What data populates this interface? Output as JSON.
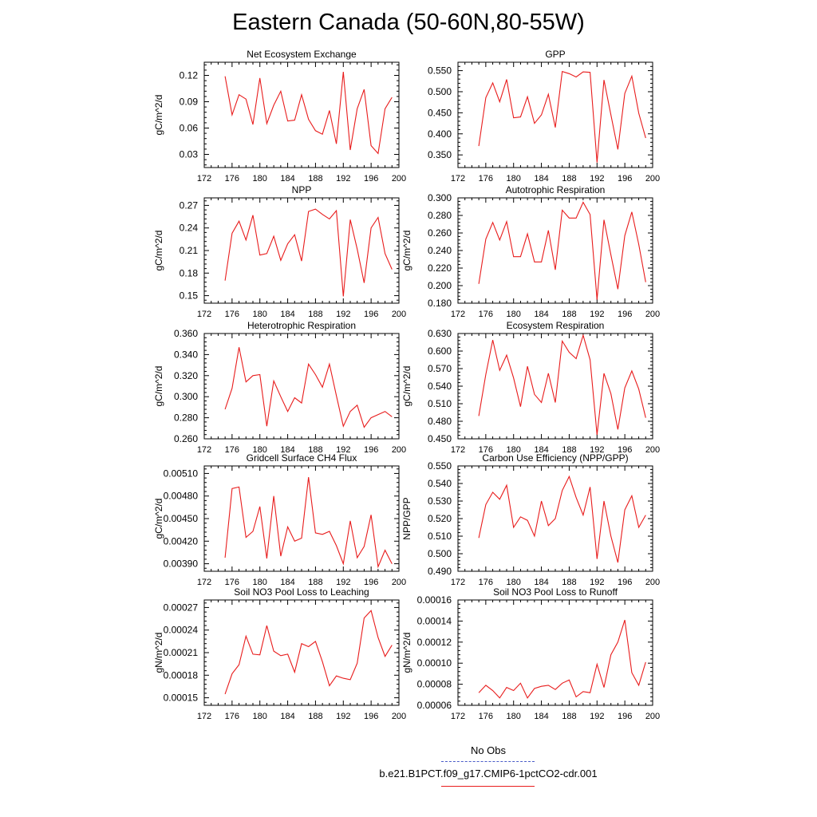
{
  "title": "Eastern Canada (50-60N,80-55W)",
  "legend": {
    "obs_label": "No Obs",
    "case_label": "b.e21.B1PCT.f09_g17.CMIP6-1pctCO2-cdr.001",
    "obs_color": "#4a5cc8",
    "case_color": "#e81c1c"
  },
  "chart_data": [
    {
      "type": "line",
      "title": "Net Ecosystem Exchange",
      "ylabel": "gC/m^2/d",
      "xlim": [
        172,
        200
      ],
      "xticks": [
        172,
        176,
        180,
        184,
        188,
        192,
        196,
        200
      ],
      "xticklabels": [
        "172",
        "176",
        "180",
        "184",
        "188",
        "192",
        "196",
        "200"
      ],
      "ylim": [
        0.015,
        0.135
      ],
      "yticks": [
        0.03,
        0.06,
        0.09,
        0.12
      ],
      "yticklabels": [
        "0.03",
        "0.06",
        "0.09",
        "0.12"
      ],
      "x": [
        175,
        176,
        177,
        178,
        179,
        180,
        181,
        182,
        183,
        184,
        185,
        186,
        187,
        188,
        189,
        190,
        191,
        192,
        193,
        194,
        195,
        196,
        197,
        198,
        199
      ],
      "series": [
        {
          "color": "#e81c1c",
          "values": [
            0.119,
            0.075,
            0.098,
            0.093,
            0.064,
            0.117,
            0.065,
            0.086,
            0.102,
            0.068,
            0.069,
            0.098,
            0.07,
            0.057,
            0.053,
            0.08,
            0.042,
            0.124,
            0.035,
            0.082,
            0.104,
            0.04,
            0.031,
            0.082,
            0.095
          ]
        }
      ]
    },
    {
      "type": "line",
      "title": "GPP",
      "ylabel": "",
      "xlim": [
        172,
        200
      ],
      "xticks": [
        172,
        176,
        180,
        184,
        188,
        192,
        196,
        200
      ],
      "xticklabels": [
        "172",
        "176",
        "180",
        "184",
        "188",
        "192",
        "196",
        "200"
      ],
      "ylim": [
        0.32,
        0.57
      ],
      "yticks": [
        0.35,
        0.4,
        0.45,
        0.5,
        0.55
      ],
      "yticklabels": [
        "0.350",
        "0.400",
        "0.450",
        "0.500",
        "0.550"
      ],
      "x": [
        175,
        176,
        177,
        178,
        179,
        180,
        181,
        182,
        183,
        184,
        185,
        186,
        187,
        188,
        189,
        190,
        191,
        192,
        193,
        194,
        195,
        196,
        197,
        198,
        199
      ],
      "series": [
        {
          "color": "#e81c1c",
          "values": [
            0.371,
            0.486,
            0.521,
            0.476,
            0.529,
            0.438,
            0.44,
            0.488,
            0.425,
            0.445,
            0.494,
            0.415,
            0.548,
            0.543,
            0.535,
            0.547,
            0.546,
            0.332,
            0.528,
            0.445,
            0.363,
            0.496,
            0.537,
            0.449,
            0.39
          ]
        }
      ]
    },
    {
      "type": "line",
      "title": "NPP",
      "ylabel": "gC/m^2/d",
      "xlim": [
        172,
        200
      ],
      "xticks": [
        172,
        176,
        180,
        184,
        188,
        192,
        196,
        200
      ],
      "xticklabels": [
        "172",
        "176",
        "180",
        "184",
        "188",
        "192",
        "196",
        "200"
      ],
      "ylim": [
        0.14,
        0.28
      ],
      "yticks": [
        0.15,
        0.18,
        0.21,
        0.24,
        0.27
      ],
      "yticklabels": [
        "0.15",
        "0.18",
        "0.21",
        "0.24",
        "0.27"
      ],
      "x": [
        175,
        176,
        177,
        178,
        179,
        180,
        181,
        182,
        183,
        184,
        185,
        186,
        187,
        188,
        189,
        190,
        191,
        192,
        193,
        194,
        195,
        196,
        197,
        198,
        199
      ],
      "series": [
        {
          "color": "#e81c1c",
          "values": [
            0.17,
            0.233,
            0.249,
            0.224,
            0.257,
            0.204,
            0.206,
            0.229,
            0.197,
            0.219,
            0.231,
            0.196,
            0.262,
            0.265,
            0.258,
            0.252,
            0.263,
            0.149,
            0.251,
            0.212,
            0.167,
            0.24,
            0.254,
            0.206,
            0.185
          ]
        }
      ]
    },
    {
      "type": "line",
      "title": "Autotrophic Respiration",
      "ylabel": "gC/m^2/d",
      "xlim": [
        172,
        200
      ],
      "xticks": [
        172,
        176,
        180,
        184,
        188,
        192,
        196,
        200
      ],
      "xticklabels": [
        "172",
        "176",
        "180",
        "184",
        "188",
        "192",
        "196",
        "200"
      ],
      "ylim": [
        0.18,
        0.3
      ],
      "yticks": [
        0.18,
        0.2,
        0.22,
        0.24,
        0.26,
        0.28,
        0.3
      ],
      "yticklabels": [
        "0.180",
        "0.200",
        "0.220",
        "0.240",
        "0.260",
        "0.280",
        "0.300"
      ],
      "x": [
        175,
        176,
        177,
        178,
        179,
        180,
        181,
        182,
        183,
        184,
        185,
        186,
        187,
        188,
        189,
        190,
        191,
        192,
        193,
        194,
        195,
        196,
        197,
        198,
        199
      ],
      "series": [
        {
          "color": "#e81c1c",
          "values": [
            0.202,
            0.253,
            0.272,
            0.252,
            0.273,
            0.233,
            0.233,
            0.259,
            0.227,
            0.227,
            0.263,
            0.218,
            0.286,
            0.277,
            0.277,
            0.295,
            0.281,
            0.184,
            0.275,
            0.235,
            0.196,
            0.257,
            0.284,
            0.247,
            0.204
          ]
        }
      ]
    },
    {
      "type": "line",
      "title": "Heterotrophic Respiration",
      "ylabel": "gC/m^2/d",
      "xlim": [
        172,
        200
      ],
      "xticks": [
        172,
        176,
        180,
        184,
        188,
        192,
        196,
        200
      ],
      "xticklabels": [
        "172",
        "176",
        "180",
        "184",
        "188",
        "192",
        "196",
        "200"
      ],
      "ylim": [
        0.26,
        0.36
      ],
      "yticks": [
        0.26,
        0.28,
        0.3,
        0.32,
        0.34,
        0.36
      ],
      "yticklabels": [
        "0.260",
        "0.280",
        "0.300",
        "0.320",
        "0.340",
        "0.360"
      ],
      "x": [
        175,
        176,
        177,
        178,
        179,
        180,
        181,
        182,
        183,
        184,
        185,
        186,
        187,
        188,
        189,
        190,
        191,
        192,
        193,
        194,
        195,
        196,
        197,
        198,
        199
      ],
      "series": [
        {
          "color": "#e81c1c",
          "values": [
            0.288,
            0.308,
            0.347,
            0.314,
            0.32,
            0.321,
            0.272,
            0.315,
            0.3,
            0.286,
            0.299,
            0.294,
            0.331,
            0.321,
            0.309,
            0.331,
            0.301,
            0.272,
            0.286,
            0.292,
            0.271,
            0.28,
            0.283,
            0.286,
            0.281
          ]
        }
      ]
    },
    {
      "type": "line",
      "title": "Ecosystem Respiration",
      "ylabel": "gC/m^2/d",
      "xlim": [
        172,
        200
      ],
      "xticks": [
        172,
        176,
        180,
        184,
        188,
        192,
        196,
        200
      ],
      "xticklabels": [
        "172",
        "176",
        "180",
        "184",
        "188",
        "192",
        "196",
        "200"
      ],
      "ylim": [
        0.45,
        0.63
      ],
      "yticks": [
        0.45,
        0.48,
        0.51,
        0.54,
        0.57,
        0.6,
        0.63
      ],
      "yticklabels": [
        "0.450",
        "0.480",
        "0.510",
        "0.540",
        "0.570",
        "0.600",
        "0.630"
      ],
      "x": [
        175,
        176,
        177,
        178,
        179,
        180,
        181,
        182,
        183,
        184,
        185,
        186,
        187,
        188,
        189,
        190,
        191,
        192,
        193,
        194,
        195,
        196,
        197,
        198,
        199
      ],
      "series": [
        {
          "color": "#e81c1c",
          "values": [
            0.489,
            0.56,
            0.619,
            0.567,
            0.593,
            0.554,
            0.505,
            0.574,
            0.526,
            0.512,
            0.562,
            0.512,
            0.617,
            0.598,
            0.587,
            0.627,
            0.585,
            0.457,
            0.562,
            0.527,
            0.466,
            0.537,
            0.566,
            0.535,
            0.486
          ]
        }
      ]
    },
    {
      "type": "line",
      "title": "Gridcell Surface CH4 Flux",
      "ylabel": "gC/m^2/d",
      "xlim": [
        172,
        200
      ],
      "xticks": [
        172,
        176,
        180,
        184,
        188,
        192,
        196,
        200
      ],
      "xticklabels": [
        "172",
        "176",
        "180",
        "184",
        "188",
        "192",
        "196",
        "200"
      ],
      "ylim": [
        0.0038,
        0.0052
      ],
      "yticks": [
        0.0039,
        0.0042,
        0.0045,
        0.0048,
        0.0051
      ],
      "yticklabels": [
        "0.00390",
        "0.00420",
        "0.00450",
        "0.00480",
        "0.00510"
      ],
      "x": [
        175,
        176,
        177,
        178,
        179,
        180,
        181,
        182,
        183,
        184,
        185,
        186,
        187,
        188,
        189,
        190,
        191,
        192,
        193,
        194,
        195,
        196,
        197,
        198,
        199
      ],
      "series": [
        {
          "color": "#e81c1c",
          "values": [
            0.00398,
            0.0049,
            0.00492,
            0.00425,
            0.00433,
            0.00466,
            0.00397,
            0.0048,
            0.004,
            0.00439,
            0.0042,
            0.00424,
            0.00505,
            0.00431,
            0.00429,
            0.00433,
            0.00414,
            0.0039,
            0.00447,
            0.00398,
            0.00413,
            0.00455,
            0.00386,
            0.00408,
            0.0039
          ]
        }
      ]
    },
    {
      "type": "line",
      "title": "Carbon Use Efficiency (NPP/GPP)",
      "ylabel": "NPP/GPP",
      "xlim": [
        172,
        200
      ],
      "xticks": [
        172,
        176,
        180,
        184,
        188,
        192,
        196,
        200
      ],
      "xticklabels": [
        "172",
        "176",
        "180",
        "184",
        "188",
        "192",
        "196",
        "200"
      ],
      "ylim": [
        0.49,
        0.55
      ],
      "yticks": [
        0.49,
        0.5,
        0.51,
        0.52,
        0.53,
        0.54,
        0.55
      ],
      "yticklabels": [
        "0.490",
        "0.500",
        "0.510",
        "0.520",
        "0.530",
        "0.540",
        "0.550"
      ],
      "x": [
        175,
        176,
        177,
        178,
        179,
        180,
        181,
        182,
        183,
        184,
        185,
        186,
        187,
        188,
        189,
        190,
        191,
        192,
        193,
        194,
        195,
        196,
        197,
        198,
        199
      ],
      "series": [
        {
          "color": "#e81c1c",
          "values": [
            0.509,
            0.528,
            0.535,
            0.531,
            0.539,
            0.515,
            0.521,
            0.519,
            0.51,
            0.53,
            0.516,
            0.52,
            0.536,
            0.544,
            0.532,
            0.522,
            0.538,
            0.497,
            0.53,
            0.51,
            0.495,
            0.525,
            0.533,
            0.515,
            0.522
          ]
        }
      ]
    },
    {
      "type": "line",
      "title": "Soil NO3 Pool Loss to Leaching",
      "ylabel": "gN/m^2/d",
      "xlim": [
        172,
        200
      ],
      "xticks": [
        172,
        176,
        180,
        184,
        188,
        192,
        196,
        200
      ],
      "xticklabels": [
        "172",
        "176",
        "180",
        "184",
        "188",
        "192",
        "196",
        "200"
      ],
      "ylim": [
        0.00014,
        0.00028
      ],
      "yticks": [
        0.00015,
        0.00018,
        0.00021,
        0.00024,
        0.00027
      ],
      "yticklabels": [
        "0.00015",
        "0.00018",
        "0.00021",
        "0.00024",
        "0.00027"
      ],
      "x": [
        175,
        176,
        177,
        178,
        179,
        180,
        181,
        182,
        183,
        184,
        185,
        186,
        187,
        188,
        189,
        190,
        191,
        192,
        193,
        194,
        195,
        196,
        197,
        198,
        199
      ],
      "series": [
        {
          "color": "#e81c1c",
          "values": [
            0.000155,
            0.000182,
            0.000194,
            0.000232,
            0.000208,
            0.000207,
            0.000246,
            0.000212,
            0.000206,
            0.000208,
            0.000184,
            0.000222,
            0.000218,
            0.000225,
            0.000198,
            0.000166,
            0.000179,
            0.000176,
            0.000174,
            0.000196,
            0.000256,
            0.000266,
            0.00023,
            0.000205,
            0.00022
          ]
        }
      ]
    },
    {
      "type": "line",
      "title": "Soil NO3 Pool Loss to Runoff",
      "ylabel": "gN/m^2/d",
      "xlim": [
        172,
        200
      ],
      "xticks": [
        172,
        176,
        180,
        184,
        188,
        192,
        196,
        200
      ],
      "xticklabels": [
        "172",
        "176",
        "180",
        "184",
        "188",
        "192",
        "196",
        "200"
      ],
      "ylim": [
        6e-05,
        0.00016
      ],
      "yticks": [
        6e-05,
        8e-05,
        0.0001,
        0.00012,
        0.00014,
        0.00016
      ],
      "yticklabels": [
        "0.00006",
        "0.00008",
        "0.00010",
        "0.00012",
        "0.00014",
        "0.00016"
      ],
      "x": [
        175,
        176,
        177,
        178,
        179,
        180,
        181,
        182,
        183,
        184,
        185,
        186,
        187,
        188,
        189,
        190,
        191,
        192,
        193,
        194,
        195,
        196,
        197,
        198,
        199
      ],
      "series": [
        {
          "color": "#e81c1c",
          "values": [
            7.2e-05,
            7.9e-05,
            7.4e-05,
            6.7e-05,
            7.7e-05,
            7.4e-05,
            8.1e-05,
            6.7e-05,
            7.6e-05,
            7.8e-05,
            7.9e-05,
            7.5e-05,
            8.1e-05,
            8.4e-05,
            6.8e-05,
            7.3e-05,
            7.2e-05,
            9.9e-05,
            7.7e-05,
            0.000108,
            0.00012,
            0.000141,
            9.1e-05,
            7.9e-05,
            0.000101
          ]
        }
      ]
    }
  ]
}
